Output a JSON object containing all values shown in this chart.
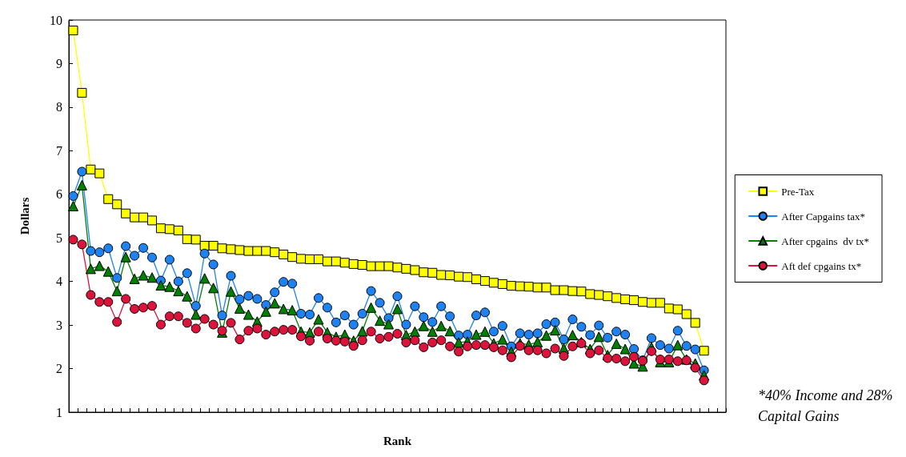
{
  "chart_data": {
    "type": "line",
    "xlabel": "Rank",
    "ylabel": "Dollars",
    "categories": [
      null,
      null,
      null,
      null,
      null,
      null,
      null,
      null,
      null,
      null,
      null,
      null,
      null,
      null,
      null,
      null,
      null,
      null,
      null,
      null,
      null,
      null,
      null,
      null,
      null,
      null,
      null,
      null,
      null,
      null,
      null,
      null,
      null,
      null,
      null,
      null,
      null,
      null,
      null,
      null,
      null,
      null,
      null,
      null,
      null,
      null,
      null,
      null,
      null,
      null,
      null,
      null,
      null,
      null,
      null,
      null,
      null,
      null,
      null,
      null,
      null,
      null,
      null,
      null,
      null,
      null,
      null,
      null,
      null,
      null,
      null,
      null,
      null,
      null,
      null
    ],
    "ylim": [
      1,
      10
    ],
    "yticks": [
      1,
      2,
      3,
      4,
      5,
      6,
      7,
      8,
      9,
      10
    ],
    "grid": false,
    "legend": "right",
    "series": [
      {
        "name": "Pre-Tax",
        "color": "#ffff00",
        "marker": "square",
        "values": [
          9.76,
          8.33,
          6.57,
          6.48,
          5.89,
          5.77,
          5.56,
          5.47,
          5.47,
          5.4,
          5.22,
          5.2,
          5.17,
          4.97,
          4.96,
          4.82,
          4.82,
          4.76,
          4.74,
          4.72,
          4.7,
          4.7,
          4.7,
          4.67,
          4.62,
          4.56,
          4.52,
          4.51,
          4.51,
          4.46,
          4.46,
          4.43,
          4.4,
          4.38,
          4.35,
          4.35,
          4.35,
          4.32,
          4.29,
          4.26,
          4.21,
          4.2,
          4.15,
          4.14,
          4.11,
          4.1,
          4.05,
          4.01,
          3.97,
          3.94,
          3.9,
          3.89,
          3.88,
          3.86,
          3.86,
          3.8,
          3.8,
          3.78,
          3.77,
          3.71,
          3.69,
          3.66,
          3.62,
          3.59,
          3.57,
          3.53,
          3.51,
          3.51,
          3.38,
          3.36,
          3.25,
          3.05,
          2.41,
          null,
          null
        ]
      },
      {
        "name": "After Capgains tax*",
        "color": "#1e82f0",
        "marker": "circle",
        "values": [
          5.96,
          6.52,
          4.7,
          4.67,
          4.76,
          4.08,
          4.81,
          4.59,
          4.77,
          4.55,
          4.02,
          4.5,
          4.0,
          4.19,
          3.44,
          4.64,
          4.39,
          3.22,
          4.13,
          3.59,
          3.67,
          3.6,
          3.46,
          3.75,
          3.99,
          3.95,
          3.26,
          3.24,
          3.62,
          3.4,
          3.06,
          3.22,
          3.01,
          3.26,
          3.78,
          3.51,
          3.16,
          3.66,
          3.01,
          3.43,
          3.18,
          3.07,
          3.43,
          3.2,
          2.76,
          2.78,
          3.22,
          3.29,
          2.85,
          2.98,
          2.51,
          2.81,
          2.78,
          2.81,
          3.02,
          3.06,
          2.67,
          3.13,
          2.96,
          2.77,
          2.99,
          2.71,
          2.85,
          2.78,
          2.45,
          2.19,
          2.7,
          2.54,
          2.46,
          2.87,
          2.52,
          2.44,
          1.96,
          null,
          null
        ]
      },
      {
        "name": "After cpgains  dv tx*",
        "color": "#008000",
        "marker": "triangle",
        "values": [
          5.73,
          6.21,
          4.29,
          4.36,
          4.23,
          3.78,
          4.56,
          4.06,
          4.14,
          4.09,
          3.91,
          3.88,
          3.78,
          3.66,
          3.24,
          4.07,
          3.85,
          2.83,
          3.77,
          3.38,
          3.24,
          3.08,
          3.31,
          3.5,
          3.37,
          3.34,
          2.85,
          2.83,
          3.13,
          2.83,
          2.73,
          2.78,
          2.64,
          2.86,
          3.4,
          3.1,
          3.02,
          3.37,
          2.77,
          2.85,
          2.98,
          2.85,
          2.98,
          2.86,
          2.6,
          2.62,
          2.78,
          2.85,
          2.58,
          2.67,
          2.39,
          2.58,
          2.55,
          2.61,
          2.76,
          2.88,
          2.46,
          2.77,
          2.61,
          2.45,
          2.73,
          2.31,
          2.57,
          2.45,
          2.12,
          2.05,
          2.49,
          2.15,
          2.15,
          2.54,
          2.21,
          2.12,
          1.85,
          null,
          null
        ]
      },
      {
        "name": "Aft def cpgains tx*",
        "color": "#dc143c",
        "marker": "circle",
        "values": [
          4.96,
          4.85,
          3.69,
          3.53,
          3.53,
          3.07,
          3.6,
          3.37,
          3.4,
          3.44,
          3.01,
          3.2,
          3.2,
          3.05,
          2.92,
          3.14,
          3.01,
          2.87,
          3.05,
          2.67,
          2.87,
          2.92,
          2.78,
          2.85,
          2.89,
          2.89,
          2.74,
          2.64,
          2.85,
          2.69,
          2.64,
          2.62,
          2.52,
          2.65,
          2.85,
          2.69,
          2.73,
          2.8,
          2.6,
          2.65,
          2.49,
          2.6,
          2.65,
          2.51,
          2.39,
          2.51,
          2.54,
          2.54,
          2.49,
          2.42,
          2.26,
          2.52,
          2.42,
          2.42,
          2.35,
          2.46,
          2.29,
          2.51,
          2.58,
          2.35,
          2.42,
          2.24,
          2.23,
          2.17,
          2.27,
          2.18,
          2.4,
          2.21,
          2.21,
          2.17,
          2.19,
          2.02,
          1.73,
          null,
          null
        ]
      }
    ],
    "annotations": [
      "*40% Income and 28% Capital Gains"
    ]
  }
}
